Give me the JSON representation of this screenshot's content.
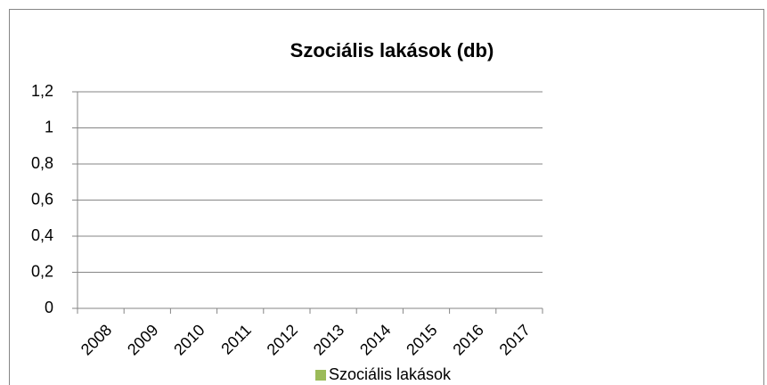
{
  "chart_data": {
    "type": "bar",
    "title": "Szociális lakások (db)",
    "categories": [
      "2008",
      "2009",
      "2010",
      "2011",
      "2012",
      "2013",
      "2014",
      "2015",
      "2016",
      "2017"
    ],
    "series": [
      {
        "name": "Szociális lakások",
        "color": "#9bbb59",
        "values": [
          0,
          0,
          0,
          0,
          0,
          0,
          0,
          0,
          0,
          0
        ]
      }
    ],
    "ylim": [
      0,
      1.2
    ],
    "yticks": [
      0,
      {
        "value": 0.2,
        "label": "0,2"
      },
      {
        "value": 0.4,
        "label": "0,4"
      },
      {
        "value": 0.6,
        "label": "0,6"
      },
      {
        "value": 0.8,
        "label": "0,8"
      },
      1,
      {
        "value": 1.2,
        "label": "1,2"
      }
    ],
    "grid": true,
    "legend": "bottom"
  }
}
